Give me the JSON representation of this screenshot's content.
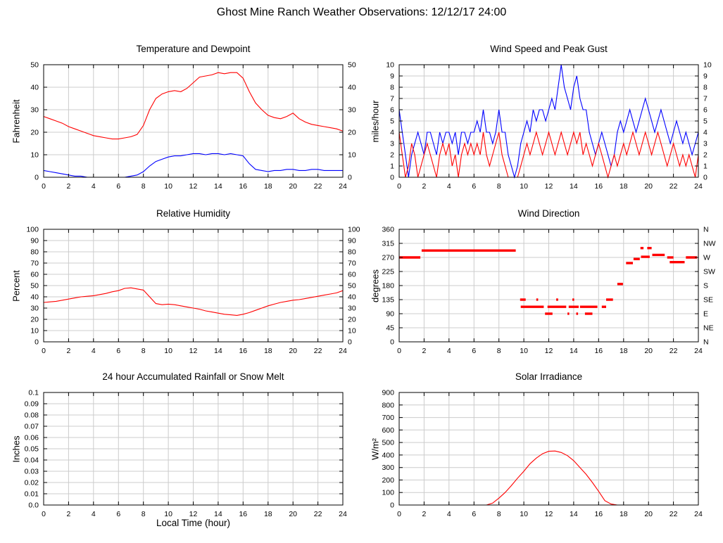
{
  "page_title": "Ghost Mine Ranch Weather Observations: 12/12/17 24:00",
  "chart_data": [
    {
      "type": "line",
      "title": "Temperature and Dewpoint",
      "ylabel": "Fahrenheit",
      "xlim": [
        0,
        24
      ],
      "xtick_step": 2,
      "ylim": [
        0,
        50
      ],
      "ytick_labels": [
        "0",
        "10",
        "20",
        "30",
        "40",
        "50"
      ],
      "right_labels": "mirror",
      "grid": true,
      "series": [
        {
          "name": "temperature",
          "color": "#ff0000",
          "x_step": 0.5,
          "values": [
            27,
            26,
            25,
            24,
            22.5,
            21.5,
            20.5,
            19.5,
            18.5,
            18,
            17.5,
            17,
            17,
            17.5,
            18,
            19,
            23,
            30,
            35,
            37,
            38,
            38.5,
            38,
            39.5,
            42,
            44.5,
            45,
            45.5,
            46.5,
            46,
            46.5,
            46.5,
            44,
            38,
            33,
            30,
            27.5,
            26.5,
            26,
            27,
            28.5,
            26,
            24.5,
            23.5,
            23,
            22.5,
            22,
            21.5,
            20.5
          ]
        },
        {
          "name": "dewpoint",
          "color": "#0000ff",
          "x_step": 0.5,
          "values": [
            3,
            2.5,
            2,
            1.5,
            1,
            0.5,
            0.5,
            0,
            0,
            0,
            0,
            0,
            0,
            0,
            0.5,
            1,
            2.5,
            5,
            7,
            8,
            9,
            9.5,
            9.5,
            10,
            10.5,
            10.5,
            10,
            10.5,
            10.5,
            10,
            10.5,
            10,
            9.5,
            6,
            3.5,
            3,
            2.5,
            3,
            3,
            3.5,
            3.5,
            3,
            3,
            3.5,
            3.5,
            3,
            3,
            3,
            3
          ]
        }
      ]
    },
    {
      "type": "line",
      "title": "Wind Speed and Peak Gust",
      "ylabel": "miles/hour",
      "xlim": [
        0,
        24
      ],
      "xtick_step": 2,
      "ylim": [
        0,
        10
      ],
      "ytick_labels": [
        "0",
        "1",
        "2",
        "3",
        "4",
        "5",
        "6",
        "7",
        "8",
        "9",
        "10"
      ],
      "right_labels": "mirror",
      "grid": true,
      "series": [
        {
          "name": "peak-gust",
          "color": "#0000ff",
          "x_step": 0.25,
          "values": [
            6,
            4,
            2,
            0,
            2,
            3,
            4,
            3,
            2,
            4,
            4,
            3,
            2,
            4,
            3,
            4,
            4,
            3,
            4,
            2,
            4,
            4,
            3,
            4,
            4,
            5,
            4,
            6,
            4,
            4,
            3,
            4,
            6,
            4,
            4,
            2,
            1,
            0,
            1,
            3,
            4,
            5,
            4,
            6,
            5,
            6,
            6,
            5,
            6,
            7,
            6,
            8,
            10,
            8,
            7,
            6,
            8,
            9,
            7,
            6,
            6,
            4,
            3,
            2,
            3,
            4,
            3,
            2,
            1,
            2,
            4,
            5,
            4,
            5,
            6,
            5,
            4,
            5,
            6,
            7,
            6,
            5,
            4,
            5,
            6,
            5,
            4,
            3,
            4,
            5,
            4,
            3,
            4,
            3,
            2,
            3,
            4
          ]
        },
        {
          "name": "wind-speed",
          "color": "#ff0000",
          "x_step": 0.25,
          "values": [
            4,
            2,
            0,
            1,
            3,
            2,
            0,
            1,
            2,
            3,
            2,
            1,
            0,
            2,
            3,
            2,
            3,
            1,
            2,
            0,
            2,
            3,
            2,
            3,
            2,
            3,
            2,
            4,
            2,
            1,
            2,
            3,
            4,
            2,
            1,
            0,
            0,
            0,
            0,
            1,
            2,
            3,
            2,
            3,
            4,
            3,
            2,
            3,
            4,
            3,
            2,
            3,
            4,
            3,
            2,
            3,
            4,
            3,
            4,
            2,
            3,
            2,
            1,
            2,
            3,
            2,
            1,
            0,
            1,
            2,
            1,
            2,
            3,
            2,
            3,
            4,
            3,
            2,
            3,
            4,
            3,
            2,
            3,
            4,
            3,
            2,
            1,
            2,
            3,
            2,
            1,
            2,
            1,
            2,
            1,
            0,
            2
          ]
        }
      ]
    },
    {
      "type": "line",
      "title": "Relative Humidity",
      "ylabel": "Percent",
      "xlim": [
        0,
        24
      ],
      "xtick_step": 2,
      "ylim": [
        0,
        100
      ],
      "ytick_labels": [
        "0",
        "10",
        "20",
        "30",
        "40",
        "50",
        "60",
        "70",
        "80",
        "90",
        "100"
      ],
      "right_labels": "mirror",
      "grid": true,
      "series": [
        {
          "name": "relative-humidity",
          "color": "#ff0000",
          "x_step": 0.5,
          "values": [
            35,
            35.5,
            36,
            37,
            38,
            39,
            40,
            40.5,
            41,
            42,
            43,
            44.5,
            45.5,
            47.5,
            48,
            47,
            46,
            40,
            34,
            33,
            33.5,
            33,
            32,
            31,
            30,
            29,
            27.5,
            26.5,
            25.5,
            24.5,
            24,
            23.5,
            24.5,
            26,
            28,
            30,
            32,
            33.5,
            35,
            36,
            37,
            37.5,
            38.5,
            39.5,
            40.5,
            41.5,
            42.5,
            43.5,
            45.5
          ]
        }
      ]
    },
    {
      "type": "scatter",
      "title": "Wind Direction",
      "ylabel": "degrees",
      "xlim": [
        0,
        24
      ],
      "xtick_step": 2,
      "ylim": [
        0,
        360
      ],
      "ytick_labels": [
        "0",
        "45",
        "90",
        "135",
        "180",
        "225",
        "270",
        "315",
        "360"
      ],
      "right_labels": [
        "N",
        "NE",
        "E",
        "SE",
        "S",
        "SW",
        "W",
        "NW",
        "N"
      ],
      "grid": true,
      "color": "#ff0000",
      "segments": [
        [
          0.0,
          1.7,
          270
        ],
        [
          1.8,
          9.35,
          292
        ],
        [
          9.7,
          10.15,
          135
        ],
        [
          9.75,
          11.6,
          112
        ],
        [
          11.0,
          11.15,
          135
        ],
        [
          11.7,
          12.3,
          90
        ],
        [
          11.9,
          13.4,
          112
        ],
        [
          12.6,
          12.75,
          135
        ],
        [
          13.5,
          13.6,
          90
        ],
        [
          13.6,
          14.4,
          112
        ],
        [
          13.9,
          14.0,
          135
        ],
        [
          14.2,
          14.35,
          90
        ],
        [
          14.5,
          15.9,
          112
        ],
        [
          14.9,
          15.5,
          90
        ],
        [
          16.25,
          16.6,
          112
        ],
        [
          16.6,
          17.15,
          135
        ],
        [
          17.5,
          17.95,
          185
        ],
        [
          18.2,
          18.75,
          252
        ],
        [
          18.8,
          19.3,
          265
        ],
        [
          19.35,
          19.6,
          300
        ],
        [
          19.4,
          20.1,
          272
        ],
        [
          19.9,
          20.25,
          300
        ],
        [
          20.3,
          21.3,
          278
        ],
        [
          21.5,
          22.0,
          270
        ],
        [
          21.7,
          22.9,
          255
        ],
        [
          23.0,
          23.9,
          270
        ]
      ]
    },
    {
      "type": "line",
      "title": "24 hour Accumulated Rainfall or Snow Melt",
      "ylabel": "Inches",
      "xlabel": "Local Time (hour)",
      "xlim": [
        0,
        24
      ],
      "xtick_step": 2,
      "ylim": [
        0,
        0.1
      ],
      "ytick_labels": [
        "0.0",
        "0.01",
        "0.02",
        "0.03",
        "0.04",
        "0.05",
        "0.06",
        "0.07",
        "0.08",
        "0.09",
        "0.1"
      ],
      "right_labels": null,
      "grid": true,
      "series": [
        {
          "name": "accumulated-rainfall",
          "color": "#ff0000",
          "x_step": 24,
          "values": [
            0,
            0
          ]
        }
      ]
    },
    {
      "type": "line",
      "title": "Solar Irradiance",
      "ylabel": "W/m²",
      "xlim": [
        0,
        24
      ],
      "xtick_step": 2,
      "ylim": [
        0,
        900
      ],
      "ytick_labels": [
        "0",
        "100",
        "200",
        "300",
        "400",
        "500",
        "600",
        "700",
        "800",
        "900"
      ],
      "right_labels": null,
      "grid": true,
      "series": [
        {
          "name": "solar-irradiance",
          "color": "#ff0000",
          "x_step": 0.5,
          "values": [
            0,
            0,
            0,
            0,
            0,
            0,
            0,
            0,
            0,
            0,
            0,
            0,
            0,
            0,
            0,
            15,
            55,
            100,
            155,
            215,
            270,
            330,
            375,
            410,
            430,
            432,
            420,
            395,
            355,
            300,
            245,
            180,
            110,
            35,
            8,
            0,
            0,
            0,
            0,
            0,
            0,
            0,
            0,
            0,
            0,
            0,
            0,
            0,
            0
          ]
        }
      ]
    }
  ]
}
